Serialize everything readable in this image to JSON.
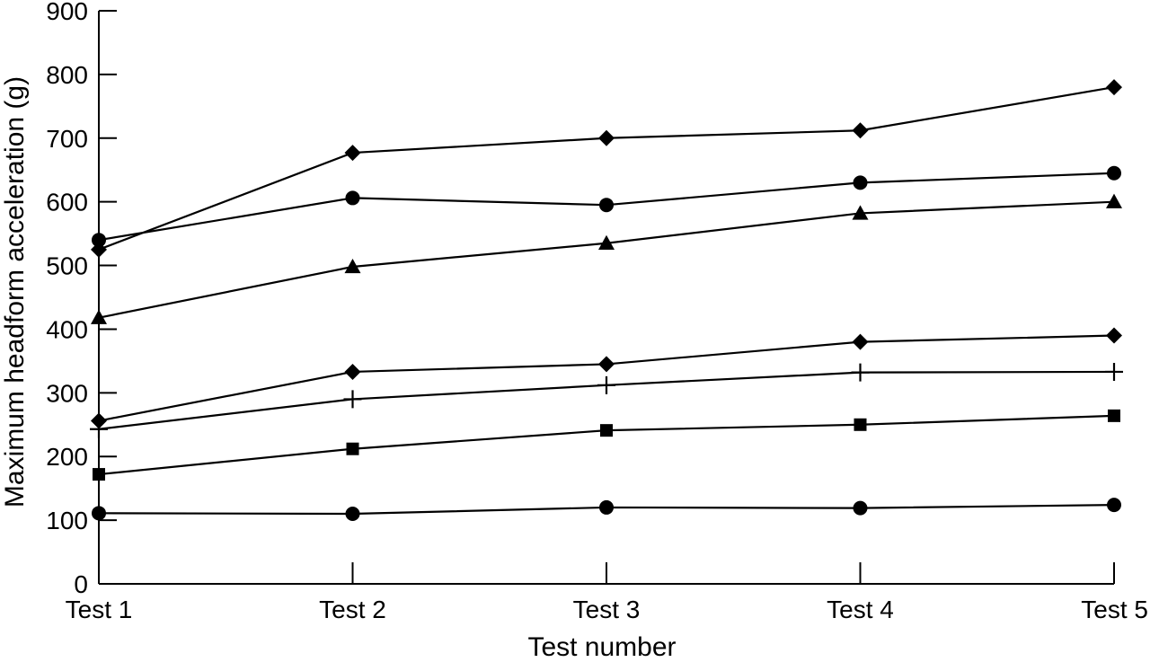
{
  "chart_data": {
    "type": "line",
    "title": "",
    "xlabel": "Test number",
    "ylabel": "Maximum headform acceleration (g)",
    "categories": [
      "Test 1",
      "Test 2",
      "Test 3",
      "Test 4",
      "Test 5"
    ],
    "ylim": [
      0,
      900
    ],
    "yticks": [
      0,
      100,
      200,
      300,
      400,
      500,
      600,
      700,
      800,
      900
    ],
    "grid": false,
    "legend": "none",
    "series": [
      {
        "marker": "diamond",
        "values": [
          525,
          677,
          700,
          712,
          780
        ]
      },
      {
        "marker": "circle",
        "values": [
          540,
          606,
          595,
          630,
          645
        ]
      },
      {
        "marker": "triangle",
        "values": [
          418,
          498,
          535,
          582,
          600
        ]
      },
      {
        "marker": "diamond",
        "values": [
          256,
          333,
          345,
          380,
          390
        ]
      },
      {
        "marker": "plus",
        "values": [
          243,
          290,
          312,
          332,
          333
        ]
      },
      {
        "marker": "square",
        "values": [
          172,
          212,
          241,
          250,
          264
        ]
      },
      {
        "marker": "circle",
        "values": [
          111,
          110,
          120,
          119,
          124
        ]
      }
    ]
  }
}
